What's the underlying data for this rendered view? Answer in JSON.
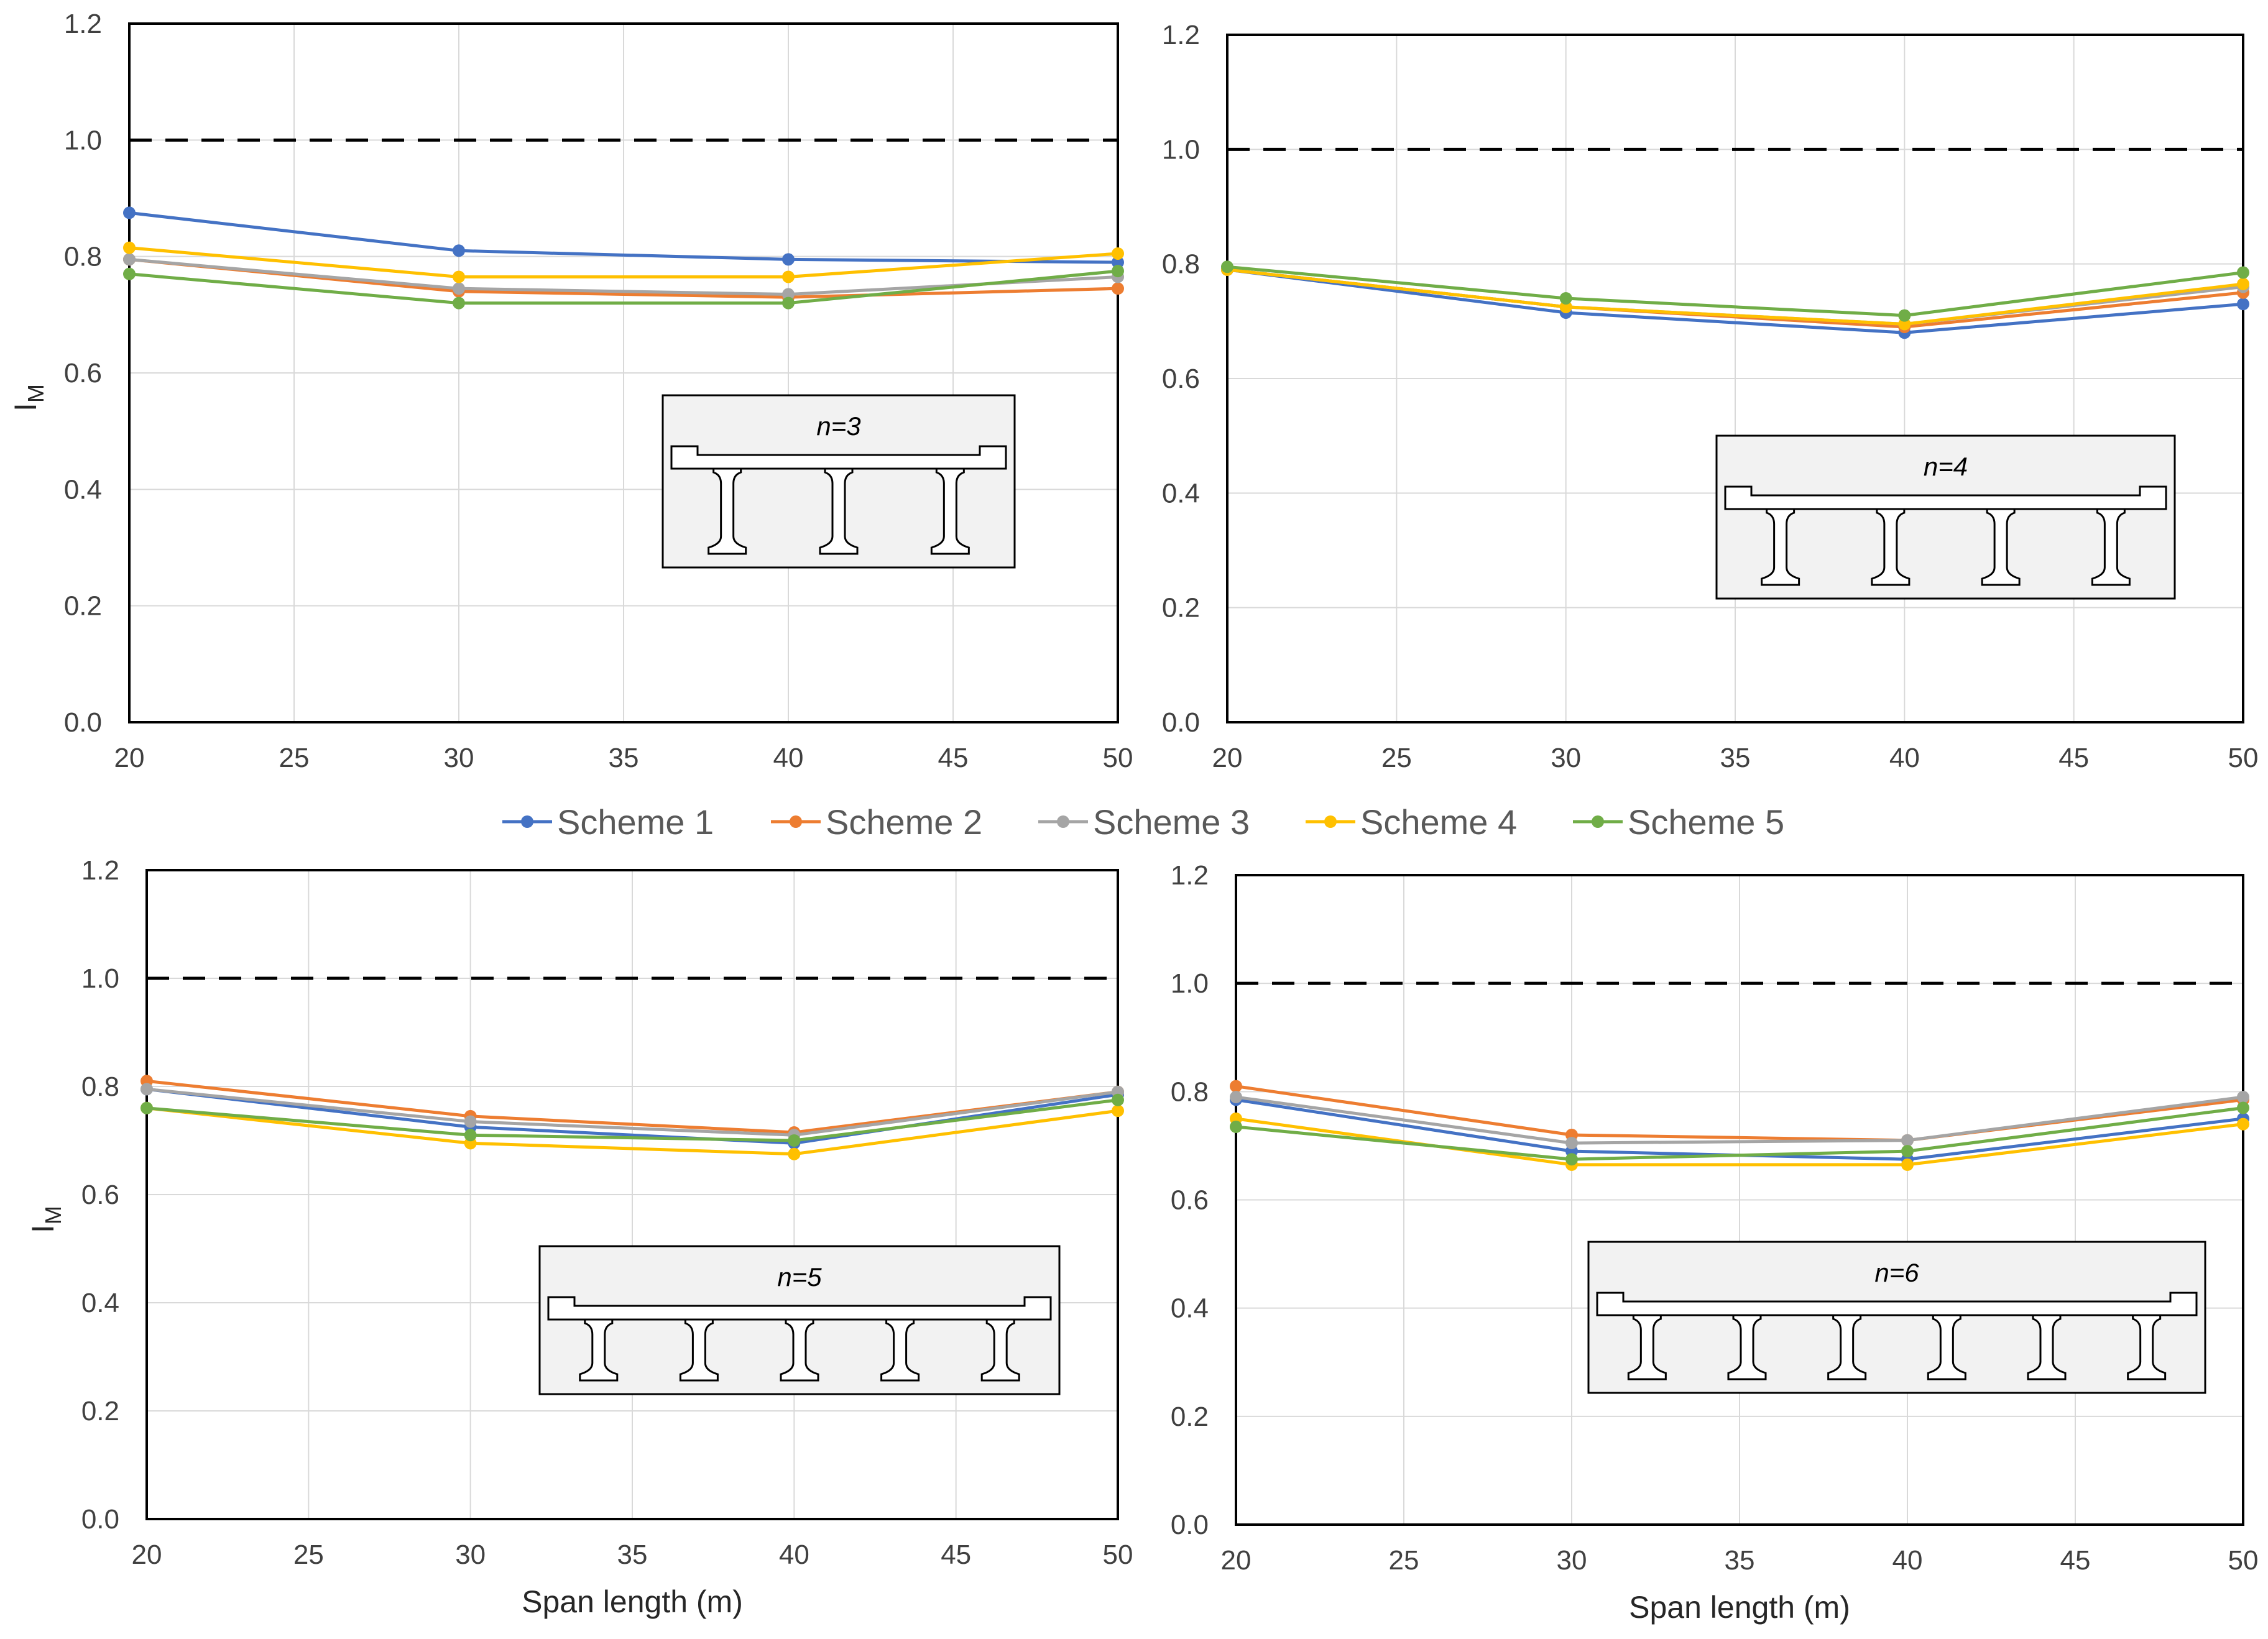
{
  "legend": {
    "entries": [
      "Scheme 1",
      "Scheme 2",
      "Scheme 3",
      "Scheme 4",
      "Scheme 5"
    ]
  },
  "colors": {
    "Scheme 1": "#4472C4",
    "Scheme 2": "#ED7D31",
    "Scheme 3": "#A5A5A5",
    "Scheme 4": "#FFC000",
    "Scheme 5": "#70AD47",
    "reference_line": "#000000",
    "grid": "#D9D9D9",
    "inset_fill": "#F2F2F2"
  },
  "chart_data": [
    {
      "type": "line",
      "inset_label": "n=3",
      "girders": 3,
      "ylabel": "I",
      "ylabel_sub": "M",
      "xlabel": "",
      "xlim": [
        20,
        50
      ],
      "ylim": [
        0,
        1.2
      ],
      "xticks": [
        "20",
        "25",
        "30",
        "35",
        "40",
        "45",
        "50"
      ],
      "yticks": [
        "0.0",
        "0.2",
        "0.4",
        "0.6",
        "0.8",
        "1.0",
        "1.2"
      ],
      "reference_line": 1.0,
      "grid": true,
      "x": [
        20,
        30,
        40,
        50
      ],
      "series": [
        {
          "name": "Scheme 1",
          "values": [
            0.875,
            0.81,
            0.795,
            0.79
          ]
        },
        {
          "name": "Scheme 2",
          "values": [
            0.795,
            0.74,
            0.73,
            0.745
          ]
        },
        {
          "name": "Scheme 3",
          "values": [
            0.795,
            0.745,
            0.735,
            0.765
          ]
        },
        {
          "name": "Scheme 4",
          "values": [
            0.815,
            0.765,
            0.765,
            0.805
          ]
        },
        {
          "name": "Scheme 5",
          "values": [
            0.77,
            0.72,
            0.72,
            0.775
          ]
        }
      ]
    },
    {
      "type": "line",
      "inset_label": "n=4",
      "girders": 4,
      "ylabel": "",
      "ylabel_sub": "",
      "xlabel": "",
      "xlim": [
        20,
        50
      ],
      "ylim": [
        0,
        1.2
      ],
      "xticks": [
        "20",
        "25",
        "30",
        "35",
        "40",
        "45",
        "50"
      ],
      "yticks": [
        "0.0",
        "0.2",
        "0.4",
        "0.6",
        "0.8",
        "1.0",
        "1.2"
      ],
      "reference_line": 1.0,
      "grid": true,
      "x": [
        20,
        30,
        40,
        50
      ],
      "series": [
        {
          "name": "Scheme 1",
          "values": [
            0.79,
            0.715,
            0.68,
            0.73
          ]
        },
        {
          "name": "Scheme 2",
          "values": [
            0.79,
            0.725,
            0.69,
            0.75
          ]
        },
        {
          "name": "Scheme 3",
          "values": [
            0.79,
            0.725,
            0.695,
            0.76
          ]
        },
        {
          "name": "Scheme 4",
          "values": [
            0.79,
            0.725,
            0.695,
            0.765
          ]
        },
        {
          "name": "Scheme 5",
          "values": [
            0.795,
            0.74,
            0.71,
            0.785
          ]
        }
      ]
    },
    {
      "type": "line",
      "inset_label": "n=5",
      "girders": 5,
      "ylabel": "I",
      "ylabel_sub": "M",
      "xlabel": "Span length (m)",
      "xlim": [
        20,
        50
      ],
      "ylim": [
        0,
        1.2
      ],
      "xticks": [
        "20",
        "25",
        "30",
        "35",
        "40",
        "45",
        "50"
      ],
      "yticks": [
        "0.0",
        "0.2",
        "0.4",
        "0.6",
        "0.8",
        "1.0",
        "1.2"
      ],
      "reference_line": 1.0,
      "grid": true,
      "x": [
        20,
        30,
        40,
        50
      ],
      "series": [
        {
          "name": "Scheme 1",
          "values": [
            0.795,
            0.725,
            0.695,
            0.785
          ]
        },
        {
          "name": "Scheme 2",
          "values": [
            0.81,
            0.745,
            0.715,
            0.79
          ]
        },
        {
          "name": "Scheme 3",
          "values": [
            0.795,
            0.735,
            0.71,
            0.79
          ]
        },
        {
          "name": "Scheme 4",
          "values": [
            0.76,
            0.695,
            0.675,
            0.755
          ]
        },
        {
          "name": "Scheme 5",
          "values": [
            0.76,
            0.71,
            0.7,
            0.775
          ]
        }
      ]
    },
    {
      "type": "line",
      "inset_label": "n=6",
      "girders": 6,
      "ylabel": "",
      "ylabel_sub": "",
      "xlabel": "Span length (m)",
      "xlim": [
        20,
        50
      ],
      "ylim": [
        0,
        1.2
      ],
      "xticks": [
        "20",
        "25",
        "30",
        "35",
        "40",
        "45",
        "50"
      ],
      "yticks": [
        "0.0",
        "0.2",
        "0.4",
        "0.6",
        "0.8",
        "1.0",
        "1.2"
      ],
      "reference_line": 1.0,
      "grid": true,
      "x": [
        20,
        30,
        40,
        50
      ],
      "series": [
        {
          "name": "Scheme 1",
          "values": [
            0.785,
            0.69,
            0.675,
            0.75
          ]
        },
        {
          "name": "Scheme 2",
          "values": [
            0.81,
            0.72,
            0.71,
            0.785
          ]
        },
        {
          "name": "Scheme 3",
          "values": [
            0.79,
            0.705,
            0.71,
            0.79
          ]
        },
        {
          "name": "Scheme 4",
          "values": [
            0.75,
            0.665,
            0.665,
            0.74
          ]
        },
        {
          "name": "Scheme 5",
          "values": [
            0.735,
            0.675,
            0.69,
            0.77
          ]
        }
      ]
    }
  ]
}
